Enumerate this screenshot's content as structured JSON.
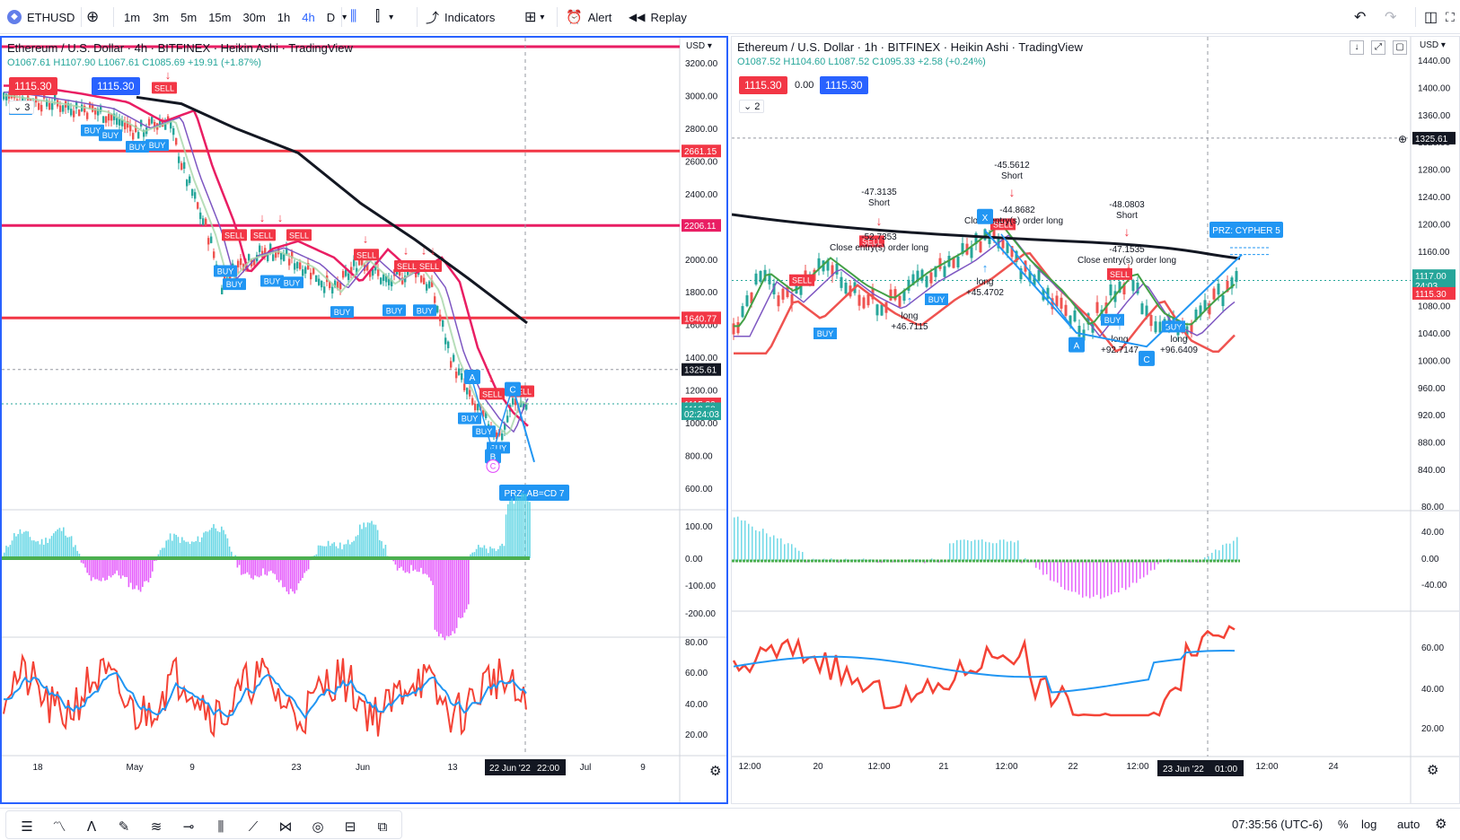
{
  "toolbar": {
    "symbol": "ETHUSD",
    "intervals": [
      "1m",
      "3m",
      "5m",
      "15m",
      "30m",
      "1h",
      "4h",
      "D"
    ],
    "active_interval": "4h",
    "indicators_label": "Indicators",
    "alert_label": "Alert",
    "replay_label": "Replay"
  },
  "left_chart": {
    "title": "Ethereum / U.S. Dollar · 4h · BITFINEX · Heikin Ashi · TradingView",
    "ohlc": "O1067.61 H1107.90 L1067.61 C1085.69 +19.91 (+1.87%)",
    "sell_price": "1115.30",
    "buy_price": "1115.30",
    "indicator_count": "3",
    "currency": "USD",
    "price_ticks": [
      "3200.00",
      "3000.00",
      "2800.00",
      "2600.00",
      "2400.00",
      "2200.00",
      "2000.00",
      "1800.00",
      "1600.00",
      "1400.00",
      "1200.00",
      "1000.00",
      "800.00",
      "600.00"
    ],
    "level_labels": [
      "2661.15",
      "2206.11",
      "1640.77",
      "1325.61",
      "1115.30",
      "1113.58",
      "02:24:03"
    ],
    "macd_ticks": [
      "100.00",
      "0.00",
      "-100.00",
      "-200.00"
    ],
    "rsi_ticks": [
      "80.00",
      "60.00",
      "40.00",
      "20.00"
    ],
    "time_ticks": [
      "18",
      "May",
      "9",
      "23",
      "Jun",
      "13",
      "Jul",
      "9"
    ],
    "cursor_time": "22 Jun '22",
    "cursor_clock": "22:00",
    "patterns": [
      "A",
      "C",
      "B",
      "C"
    ],
    "prz_label": "PRZ: AB=CD 7",
    "signals_buy": "BUY",
    "signals_sell": "SELL"
  },
  "right_chart": {
    "title": "Ethereum / U.S. Dollar · 1h · BITFINEX · Heikin Ashi · TradingView",
    "ohlc": "O1087.52 H1104.60 L1087.52 C1095.33 +2.58 (+0.24%)",
    "sell_price": "1115.30",
    "spread": "0.00",
    "buy_price": "1115.30",
    "indicator_count": "2",
    "currency": "USD",
    "price_ticks": [
      "1440.00",
      "1400.00",
      "1360.00",
      "1320.00",
      "1280.00",
      "1240.00",
      "1200.00",
      "1160.00",
      "1120.00",
      "1080.00",
      "1040.00",
      "1000.00",
      "960.00",
      "920.00",
      "880.00",
      "840.00"
    ],
    "level_labels": [
      "1325.61",
      "1117.00",
      "24:03",
      "1115.30"
    ],
    "macd_ticks": [
      "80.00",
      "40.00",
      "0.00",
      "-40.00"
    ],
    "rsi_ticks": [
      "60.00",
      "40.00",
      "20.00"
    ],
    "time_ticks": [
      "12:00",
      "20",
      "12:00",
      "21",
      "12:00",
      "22",
      "12:00",
      "12:00",
      "24"
    ],
    "cursor_time": "23 Jun '22",
    "cursor_clock": "01:00",
    "annotations": [
      {
        "text": "-47.3135"
      },
      {
        "text": "Short"
      },
      {
        "text": "-52.7353"
      },
      {
        "text": "Close entry(s) order long"
      },
      {
        "text": "-45.5612"
      },
      {
        "text": "Short"
      },
      {
        "text": "-44.8682"
      },
      {
        "text": "Close entry(s) order long"
      },
      {
        "text": "-48.0803"
      },
      {
        "text": "Short"
      },
      {
        "text": "-47.1535"
      },
      {
        "text": "Close entry(s) order long"
      },
      {
        "text": "long"
      },
      {
        "text": "+46.7115"
      },
      {
        "text": "long"
      },
      {
        "text": "+45.4702"
      },
      {
        "text": "long"
      },
      {
        "text": "+92.7147"
      },
      {
        "text": "long"
      },
      {
        "text": "+96.6409"
      }
    ],
    "patterns": [
      "X",
      "A",
      "C"
    ],
    "prz_label": "PRZ: CYPHER 5"
  },
  "bottom": {
    "clock": "07:35:56 (UTC-6)",
    "percent": "%",
    "log": "log",
    "auto": "auto"
  },
  "colors": {
    "red": "#f23645",
    "blue": "#2962ff",
    "teal": "#26a69a",
    "magenta": "#e040fb",
    "black": "#131722"
  }
}
